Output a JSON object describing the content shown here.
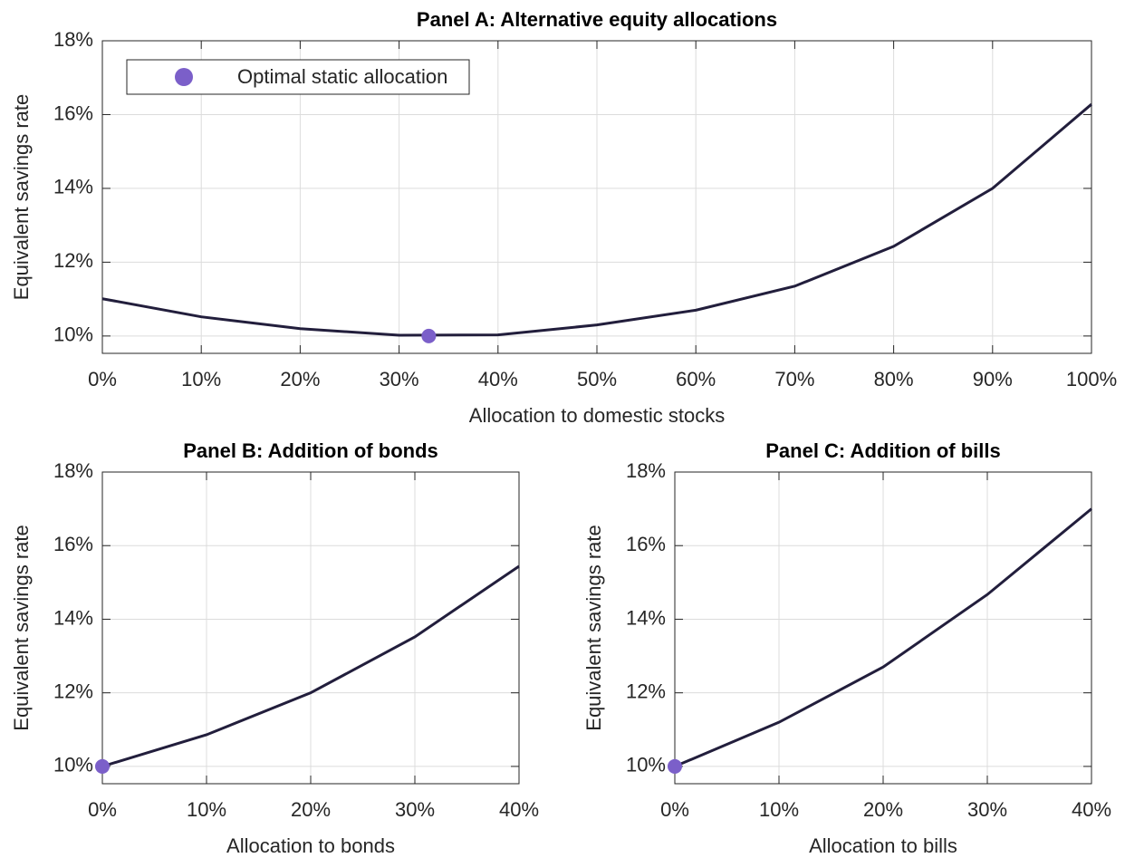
{
  "chart_data": [
    {
      "type": "line",
      "title": "Panel A: Alternative equity allocations",
      "xlabel": "Allocation to domestic stocks",
      "ylabel": "Equivalent savings rate",
      "x": [
        0,
        10,
        20,
        30,
        40,
        50,
        60,
        70,
        80,
        90,
        100
      ],
      "series": [
        {
          "color": "#221e3c",
          "values": [
            11.01,
            10.52,
            10.2,
            10.02,
            10.03,
            10.3,
            10.7,
            11.35,
            12.43,
            14.0,
            16.28
          ]
        }
      ],
      "marker": {
        "name": "Optimal static allocation",
        "color": "#7b5fc9",
        "x": [
          33
        ],
        "y": [
          10
        ]
      },
      "xlim": [
        0,
        100
      ],
      "ylim": [
        9.53,
        18
      ],
      "xticks": [
        {
          "value": 0,
          "label": "0%"
        },
        {
          "value": 10,
          "label": "10%"
        },
        {
          "value": 20,
          "label": "20%"
        },
        {
          "value": 30,
          "label": "30%"
        },
        {
          "value": 40,
          "label": "40%"
        },
        {
          "value": 50,
          "label": "50%"
        },
        {
          "value": 60,
          "label": "60%"
        },
        {
          "value": 70,
          "label": "70%"
        },
        {
          "value": 80,
          "label": "80%"
        },
        {
          "value": 90,
          "label": "90%"
        },
        {
          "value": 100,
          "label": "100%"
        }
      ],
      "yticks": [
        {
          "value": 10,
          "label": "10%"
        },
        {
          "value": 12,
          "label": "12%"
        },
        {
          "value": 14,
          "label": "14%"
        },
        {
          "value": 16,
          "label": "16%"
        },
        {
          "value": 18,
          "label": "18%"
        }
      ],
      "grid": true,
      "legend": "upper left"
    },
    {
      "type": "line",
      "title": "Panel B: Addition of bonds",
      "xlabel": "Allocation to bonds",
      "ylabel": "Equivalent savings rate",
      "x": [
        0,
        10,
        20,
        30,
        40
      ],
      "series": [
        {
          "color": "#221e3c",
          "values": [
            10,
            10.86,
            12.0,
            13.52,
            15.44
          ]
        }
      ],
      "marker": {
        "color": "#7b5fc9",
        "x": [
          0
        ],
        "y": [
          10
        ]
      },
      "xlim": [
        0,
        40
      ],
      "ylim": [
        9.53,
        18
      ],
      "xticks": [
        {
          "value": 0,
          "label": "0%"
        },
        {
          "value": 10,
          "label": "10%"
        },
        {
          "value": 20,
          "label": "20%"
        },
        {
          "value": 30,
          "label": "30%"
        },
        {
          "value": 40,
          "label": "40%"
        }
      ],
      "yticks": [
        {
          "value": 10,
          "label": "10%"
        },
        {
          "value": 12,
          "label": "12%"
        },
        {
          "value": 14,
          "label": "14%"
        },
        {
          "value": 16,
          "label": "16%"
        },
        {
          "value": 18,
          "label": "18%"
        }
      ],
      "grid": true
    },
    {
      "type": "line",
      "title": "Panel C: Addition of bills",
      "xlabel": "Allocation to bills",
      "ylabel": "Equivalent savings rate",
      "x": [
        0,
        10,
        20,
        30,
        40
      ],
      "series": [
        {
          "color": "#221e3c",
          "values": [
            10,
            11.2,
            12.7,
            14.67,
            17.0
          ]
        }
      ],
      "marker": {
        "color": "#7b5fc9",
        "x": [
          0
        ],
        "y": [
          10
        ]
      },
      "xlim": [
        0,
        40
      ],
      "ylim": [
        9.53,
        18
      ],
      "xticks": [
        {
          "value": 0,
          "label": "0%"
        },
        {
          "value": 10,
          "label": "10%"
        },
        {
          "value": 20,
          "label": "20%"
        },
        {
          "value": 30,
          "label": "30%"
        },
        {
          "value": 40,
          "label": "40%"
        }
      ],
      "yticks": [
        {
          "value": 10,
          "label": "10%"
        },
        {
          "value": 12,
          "label": "12%"
        },
        {
          "value": 14,
          "label": "14%"
        },
        {
          "value": 16,
          "label": "16%"
        },
        {
          "value": 18,
          "label": "18%"
        }
      ],
      "grid": true
    }
  ]
}
